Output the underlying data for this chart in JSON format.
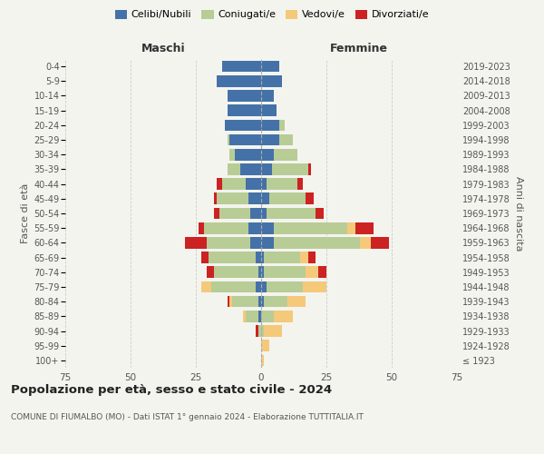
{
  "age_groups": [
    "100+",
    "95-99",
    "90-94",
    "85-89",
    "80-84",
    "75-79",
    "70-74",
    "65-69",
    "60-64",
    "55-59",
    "50-54",
    "45-49",
    "40-44",
    "35-39",
    "30-34",
    "25-29",
    "20-24",
    "15-19",
    "10-14",
    "5-9",
    "0-4"
  ],
  "birth_years": [
    "≤ 1923",
    "1924-1928",
    "1929-1933",
    "1934-1938",
    "1939-1943",
    "1944-1948",
    "1949-1953",
    "1954-1958",
    "1959-1963",
    "1964-1968",
    "1969-1973",
    "1974-1978",
    "1979-1983",
    "1984-1988",
    "1989-1993",
    "1994-1998",
    "1999-2003",
    "2004-2008",
    "2009-2013",
    "2014-2018",
    "2019-2023"
  ],
  "maschi": {
    "celibi": [
      0,
      0,
      0,
      1,
      1,
      2,
      1,
      2,
      4,
      5,
      4,
      5,
      6,
      8,
      10,
      12,
      14,
      13,
      13,
      17,
      15
    ],
    "coniugati": [
      0,
      0,
      1,
      5,
      10,
      17,
      17,
      18,
      17,
      17,
      12,
      12,
      9,
      5,
      2,
      1,
      0,
      0,
      0,
      0,
      0
    ],
    "vedovi": [
      0,
      0,
      0,
      1,
      1,
      4,
      0,
      0,
      0,
      0,
      0,
      0,
      0,
      0,
      0,
      0,
      0,
      0,
      0,
      0,
      0
    ],
    "divorziati": [
      0,
      0,
      1,
      0,
      1,
      0,
      3,
      3,
      8,
      2,
      2,
      1,
      2,
      0,
      0,
      0,
      0,
      0,
      0,
      0,
      0
    ]
  },
  "femmine": {
    "nubili": [
      0,
      0,
      0,
      0,
      1,
      2,
      1,
      1,
      5,
      5,
      2,
      3,
      2,
      4,
      5,
      7,
      7,
      6,
      5,
      8,
      7
    ],
    "coniugate": [
      0,
      0,
      1,
      5,
      9,
      14,
      16,
      14,
      33,
      28,
      19,
      14,
      12,
      14,
      9,
      5,
      2,
      0,
      0,
      0,
      0
    ],
    "vedove": [
      1,
      3,
      7,
      7,
      7,
      9,
      5,
      3,
      4,
      3,
      0,
      0,
      0,
      0,
      0,
      0,
      0,
      0,
      0,
      0,
      0
    ],
    "divorziate": [
      0,
      0,
      0,
      0,
      0,
      0,
      3,
      3,
      7,
      7,
      3,
      3,
      2,
      1,
      0,
      0,
      0,
      0,
      0,
      0,
      0
    ]
  },
  "colors": {
    "celibi": "#4472a8",
    "coniugati": "#b8cc96",
    "vedovi": "#f5c97a",
    "divorziati": "#cc2222"
  },
  "title": "Popolazione per età, sesso e stato civile - 2024",
  "subtitle": "COMUNE DI FIUMALBO (MO) - Dati ISTAT 1° gennaio 2024 - Elaborazione TUTTITALIA.IT",
  "xlabel_left": "Maschi",
  "xlabel_right": "Femmine",
  "ylabel_left": "Fasce di età",
  "ylabel_right": "Anni di nascita",
  "xlim": 75,
  "bg_color": "#f4f4ef",
  "legend_labels": [
    "Celibi/Nubili",
    "Coniugati/e",
    "Vedovi/e",
    "Divorziati/e"
  ]
}
